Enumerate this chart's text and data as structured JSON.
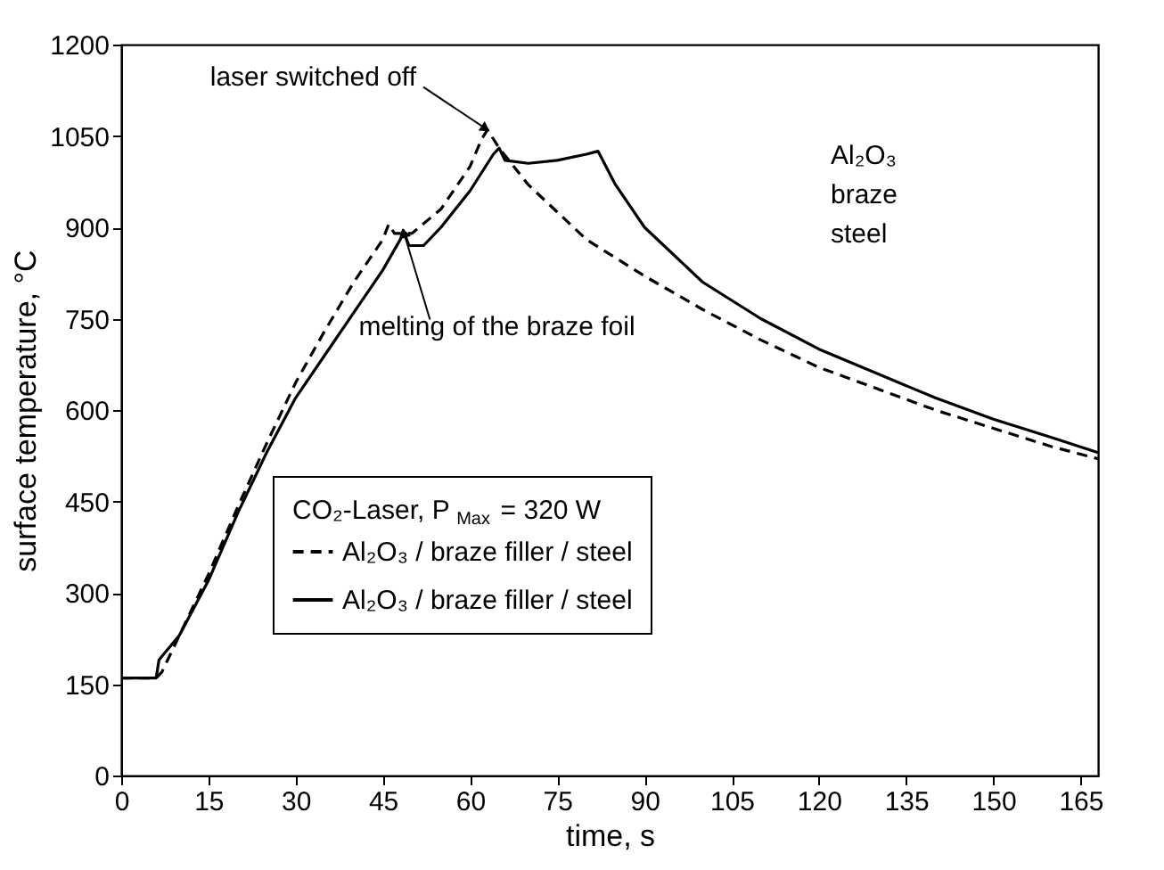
{
  "chart_data": {
    "type": "line",
    "xlabel": "time, s",
    "ylabel": "surface temperature, °C",
    "legend_title": "CO₂-Laser, P$_{Max}$ = 320 W",
    "xlim": [
      0,
      168
    ],
    "xticks": [
      0,
      15,
      30,
      45,
      60,
      75,
      90,
      105,
      120,
      135,
      150,
      165
    ],
    "ylim": [
      0,
      1200
    ],
    "yticks": [
      0,
      150,
      300,
      450,
      600,
      750,
      900,
      1050,
      1200
    ],
    "grid": false,
    "legend": "bottom left",
    "marker": "none",
    "series": [
      {
        "name": "Al₂O₃ / braze filler / steel",
        "color": "#000000",
        "line_style": "dashed",
        "x": [
          0,
          6,
          7,
          10,
          15,
          20,
          25,
          30,
          35,
          40,
          45,
          46,
          47,
          50,
          55,
          60,
          62,
          63,
          65,
          70,
          80,
          90,
          100,
          110,
          120,
          130,
          140,
          150,
          160,
          168
        ],
        "values": [
          160,
          160,
          170,
          230,
          330,
          440,
          545,
          645,
          730,
          810,
          880,
          905,
          890,
          890,
          930,
          1000,
          1045,
          1060,
          1030,
          970,
          880,
          820,
          765,
          715,
          670,
          635,
          600,
          570,
          540,
          520
        ]
      },
      {
        "name": "Al₂O₃ / braze filler / steel",
        "color": "#000000",
        "line_style": "solid",
        "x": [
          0,
          6,
          6.5,
          10,
          15,
          20,
          25,
          30,
          35,
          40,
          45,
          48,
          48.5,
          49.5,
          52,
          55,
          60,
          64,
          65,
          66,
          70,
          75,
          80,
          82,
          85,
          90,
          100,
          110,
          120,
          130,
          140,
          150,
          160,
          168
        ],
        "values": [
          160,
          160,
          190,
          230,
          320,
          430,
          530,
          620,
          690,
          760,
          830,
          880,
          895,
          870,
          870,
          900,
          960,
          1020,
          1030,
          1010,
          1005,
          1010,
          1020,
          1025,
          970,
          900,
          810,
          750,
          700,
          660,
          620,
          585,
          555,
          530
        ]
      }
    ],
    "annotations": [
      {
        "text": "laser switched off",
        "x": 63,
        "y": 1060
      },
      {
        "text": "melting of the braze foil",
        "x": 48.5,
        "y": 895
      },
      "Al₂O₃",
      "braze",
      "steel"
    ]
  }
}
